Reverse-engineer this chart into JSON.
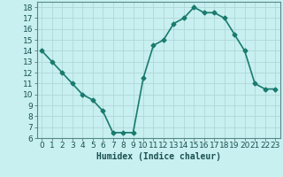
{
  "x": [
    0,
    1,
    2,
    3,
    4,
    5,
    6,
    7,
    8,
    9,
    10,
    11,
    12,
    13,
    14,
    15,
    16,
    17,
    18,
    19,
    20,
    21,
    22,
    23
  ],
  "y": [
    14.0,
    13.0,
    12.0,
    11.0,
    10.0,
    9.5,
    8.5,
    6.5,
    6.5,
    6.5,
    11.5,
    14.5,
    15.0,
    16.5,
    17.0,
    18.0,
    17.5,
    17.5,
    17.0,
    15.5,
    14.0,
    11.0,
    10.5,
    10.5
  ],
  "line_color": "#1a7a6e",
  "marker": "D",
  "marker_size": 2.5,
  "bg_color": "#c8f0f0",
  "grid_color": "#b0d8d8",
  "xlabel": "Humidex (Indice chaleur)",
  "xlabel_fontsize": 7,
  "tick_fontsize": 6.5,
  "ylim": [
    6,
    18.5
  ],
  "xlim": [
    -0.5,
    23.5
  ],
  "yticks": [
    6,
    7,
    8,
    9,
    10,
    11,
    12,
    13,
    14,
    15,
    16,
    17,
    18
  ],
  "xticks": [
    0,
    1,
    2,
    3,
    4,
    5,
    6,
    7,
    8,
    9,
    10,
    11,
    12,
    13,
    14,
    15,
    16,
    17,
    18,
    19,
    20,
    21,
    22,
    23
  ],
  "line_width": 1.2
}
